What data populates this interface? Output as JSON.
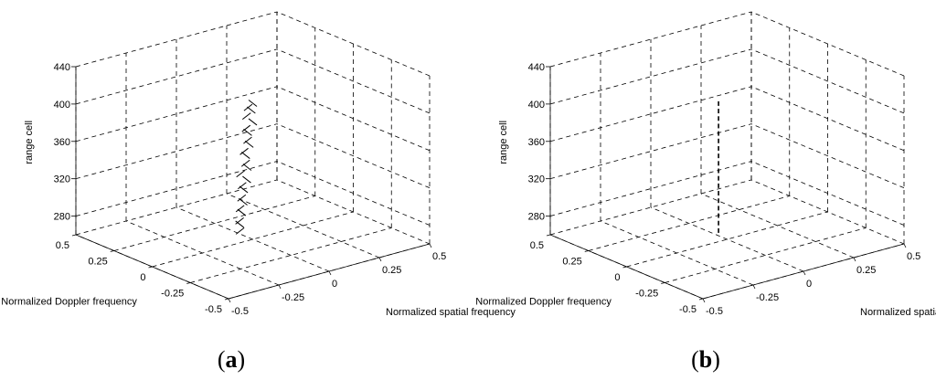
{
  "chart_data": [
    {
      "type": "scatter",
      "panel_label": "a",
      "xlabel": "Normalized spatial frequency",
      "ylabel": "Normalized Doppler frequency",
      "zlabel": "range cell",
      "xlim": [
        -0.5,
        0.5
      ],
      "ylim": [
        -0.5,
        0.5
      ],
      "zlim": [
        260,
        440
      ],
      "x_ticks": [
        "-0.5",
        "-0.25",
        "0",
        "0.25",
        "0.5"
      ],
      "y_ticks": [
        "-0.5",
        "-0.25",
        "0",
        "0.25",
        "0.5"
      ],
      "z_ticks": [
        "280",
        "320",
        "360",
        "400",
        "440"
      ],
      "grid": true,
      "series": [
        {
          "color": "#000000",
          "points": [
            {
              "x": -0.05,
              "y": 0.02,
              "z": 270
            },
            {
              "x": -0.04,
              "y": 0.03,
              "z": 276
            },
            {
              "x": -0.06,
              "y": 0.01,
              "z": 282
            },
            {
              "x": -0.03,
              "y": 0.03,
              "z": 288
            },
            {
              "x": -0.05,
              "y": 0.02,
              "z": 294
            },
            {
              "x": -0.03,
              "y": 0.02,
              "z": 300
            },
            {
              "x": -0.05,
              "y": 0.01,
              "z": 306
            },
            {
              "x": -0.02,
              "y": 0.03,
              "z": 312
            },
            {
              "x": -0.04,
              "y": 0.02,
              "z": 318
            },
            {
              "x": -0.02,
              "y": 0.01,
              "z": 324
            },
            {
              "x": -0.04,
              "y": 0.03,
              "z": 330
            },
            {
              "x": -0.01,
              "y": 0.02,
              "z": 336
            },
            {
              "x": -0.03,
              "y": 0.01,
              "z": 342
            },
            {
              "x": -0.01,
              "y": 0.03,
              "z": 348
            },
            {
              "x": -0.03,
              "y": 0.02,
              "z": 354
            },
            {
              "x": 0.0,
              "y": 0.02,
              "z": 360
            },
            {
              "x": -0.02,
              "y": 0.01,
              "z": 366
            },
            {
              "x": 0.0,
              "y": 0.03,
              "z": 372
            },
            {
              "x": -0.02,
              "y": 0.02,
              "z": 378
            },
            {
              "x": 0.01,
              "y": 0.01,
              "z": 384
            },
            {
              "x": -0.01,
              "y": 0.03,
              "z": 390
            },
            {
              "x": 0.01,
              "y": 0.02,
              "z": 396
            },
            {
              "x": -0.01,
              "y": 0.02,
              "z": 400
            },
            {
              "x": 0.01,
              "y": 0.01,
              "z": 404
            }
          ]
        }
      ]
    },
    {
      "type": "scatter",
      "panel_label": "b",
      "xlabel": "Normalized spatial frequency",
      "ylabel": "Normalized Doppler frequency",
      "zlabel": "range cell",
      "xlim": [
        -0.5,
        0.5
      ],
      "ylim": [
        -0.5,
        0.5
      ],
      "zlim": [
        260,
        440
      ],
      "x_ticks": [
        "-0.5",
        "-0.25",
        "0",
        "0.25",
        "0.5"
      ],
      "y_ticks": [
        "-0.5",
        "-0.25",
        "0",
        "0.25",
        "0.5"
      ],
      "z_ticks": [
        "280",
        "320",
        "360",
        "400",
        "440"
      ],
      "grid": true,
      "series": [
        {
          "color": "#000000",
          "points": [
            {
              "x": -0.02,
              "y": 0.03,
              "z": 268
            },
            {
              "x": -0.02,
              "y": 0.03,
              "z": 276
            },
            {
              "x": -0.02,
              "y": 0.03,
              "z": 284
            },
            {
              "x": -0.02,
              "y": 0.03,
              "z": 292
            },
            {
              "x": -0.02,
              "y": 0.03,
              "z": 300
            },
            {
              "x": -0.02,
              "y": 0.03,
              "z": 308
            },
            {
              "x": -0.02,
              "y": 0.03,
              "z": 316
            },
            {
              "x": -0.02,
              "y": 0.03,
              "z": 324
            },
            {
              "x": -0.02,
              "y": 0.03,
              "z": 332
            },
            {
              "x": -0.02,
              "y": 0.03,
              "z": 340
            },
            {
              "x": -0.02,
              "y": 0.03,
              "z": 348
            },
            {
              "x": -0.02,
              "y": 0.03,
              "z": 356
            },
            {
              "x": -0.02,
              "y": 0.03,
              "z": 364
            },
            {
              "x": -0.02,
              "y": 0.03,
              "z": 372
            },
            {
              "x": -0.02,
              "y": 0.03,
              "z": 380
            },
            {
              "x": -0.02,
              "y": 0.03,
              "z": 388
            },
            {
              "x": -0.02,
              "y": 0.03,
              "z": 396
            },
            {
              "x": -0.02,
              "y": 0.03,
              "z": 404
            }
          ]
        }
      ]
    }
  ]
}
